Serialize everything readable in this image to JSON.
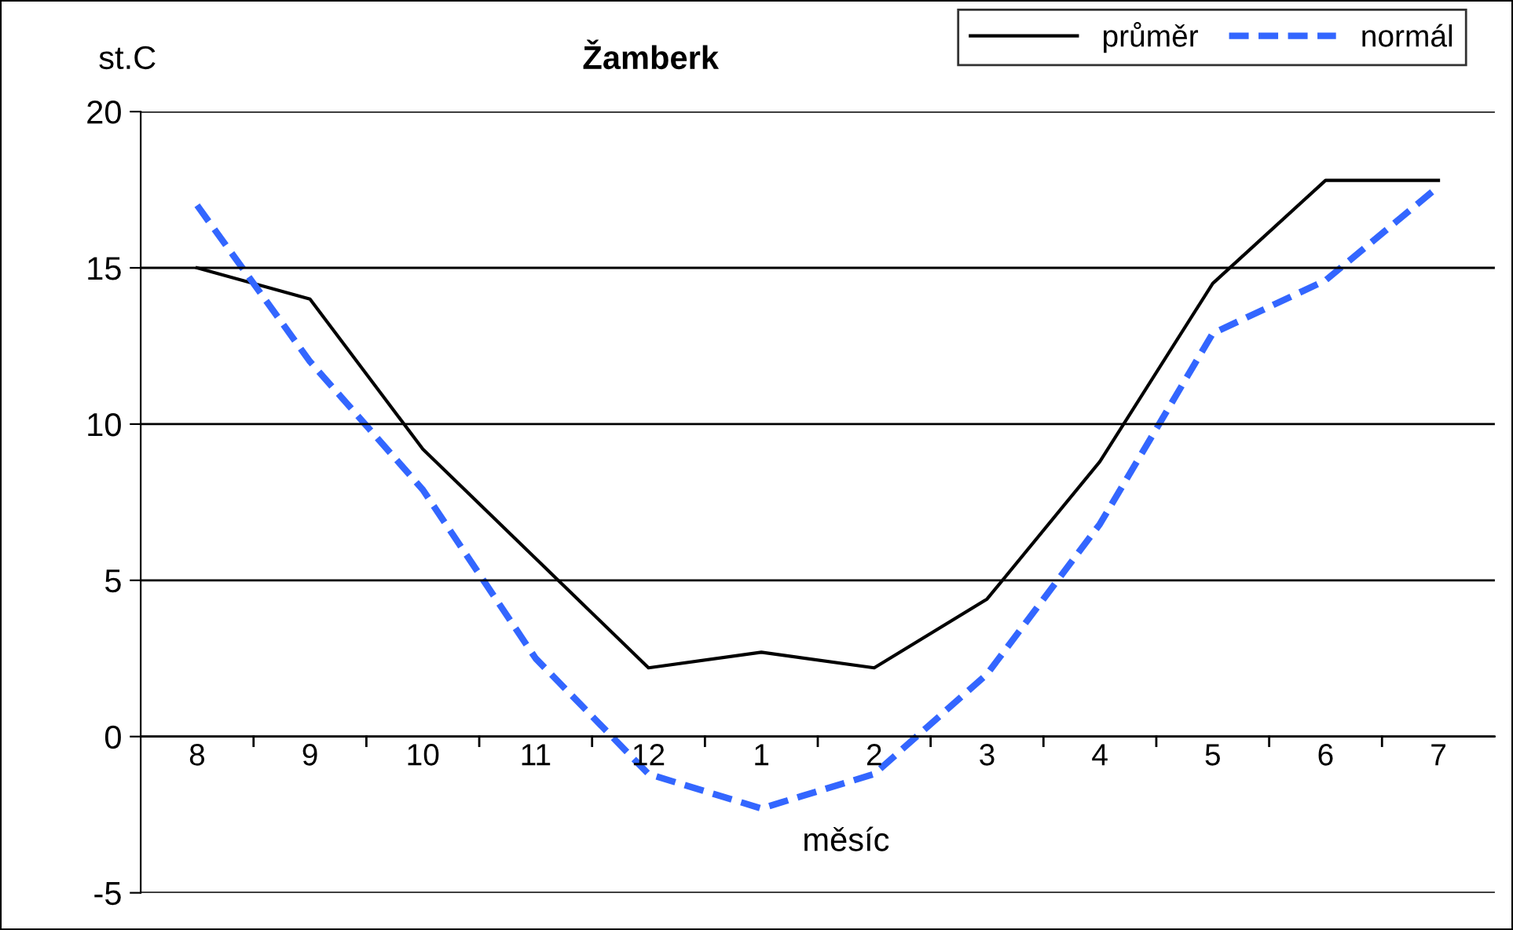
{
  "chart_data": {
    "type": "line",
    "title": "Žamberk",
    "xlabel": "měsíc",
    "ylabel": "st.C",
    "categories": [
      "8",
      "9",
      "10",
      "11",
      "12",
      "1",
      "2",
      "3",
      "4",
      "5",
      "6",
      "7"
    ],
    "series": [
      {
        "name": "průměr",
        "color": "#000000",
        "line_style": "solid",
        "values": [
          15.0,
          14.0,
          9.2,
          5.7,
          2.2,
          2.7,
          2.2,
          4.4,
          8.8,
          14.5,
          17.8,
          17.8
        ]
      },
      {
        "name": "normál",
        "color": "#3366ff",
        "line_style": "dashed",
        "values": [
          17.0,
          12.0,
          7.9,
          2.5,
          -1.2,
          -2.3,
          -1.2,
          2.0,
          6.8,
          12.9,
          14.6,
          17.6
        ]
      }
    ],
    "ylim": [
      -5,
      20
    ],
    "yticks": [
      -5,
      0,
      5,
      10,
      15,
      20
    ],
    "grid": "y",
    "legend": "top right",
    "marker": "none"
  }
}
